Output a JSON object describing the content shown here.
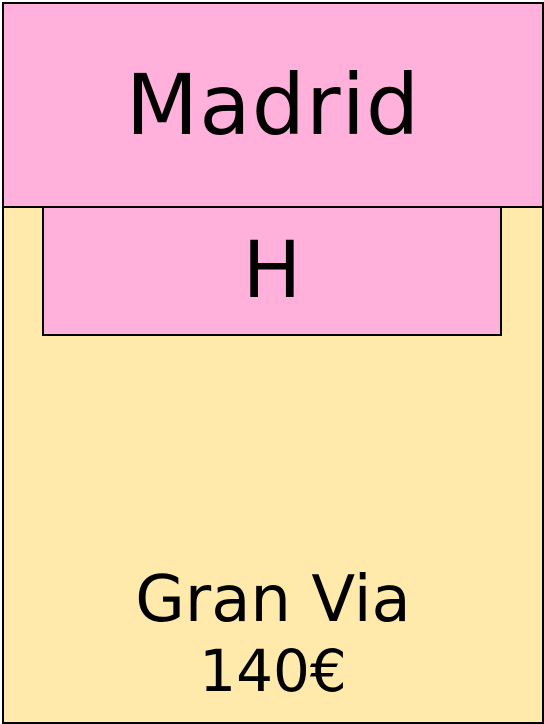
{
  "card": {
    "city": "Madrid",
    "hotel_marker": "H",
    "street_name": "Gran Via",
    "price": "140€"
  },
  "colors": {
    "header": "#ffb0db",
    "body": "#ffeaab",
    "border": "#000000",
    "text": "#000000"
  }
}
